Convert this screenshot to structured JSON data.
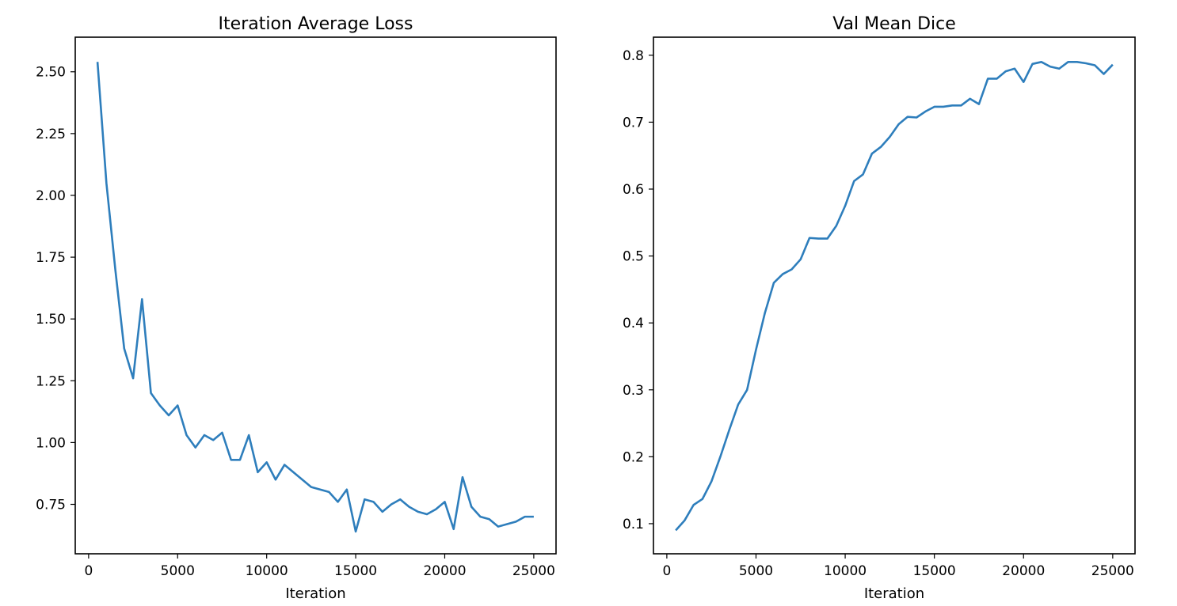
{
  "colors": {
    "line": "#2e7ebc",
    "axes": "#000000",
    "background": "#ffffff"
  },
  "chart_data": [
    {
      "type": "line",
      "title": "Iteration Average Loss",
      "xlabel": "Iteration",
      "ylabel": "",
      "xlim": [
        -750,
        26250
      ],
      "ylim": [
        0.55,
        2.64
      ],
      "xticks": [
        0,
        5000,
        10000,
        15000,
        20000,
        25000
      ],
      "yticks": [
        0.75,
        1.0,
        1.25,
        1.5,
        1.75,
        2.0,
        2.25,
        2.5
      ],
      "xtick_labels": [
        "0",
        "5000",
        "10000",
        "15000",
        "20000",
        "25000"
      ],
      "ytick_labels": [
        "0.75",
        "1.00",
        "1.25",
        "1.50",
        "1.75",
        "2.00",
        "2.25",
        "2.50"
      ],
      "grid": false,
      "series": [
        {
          "x": [
            500,
            1000,
            1500,
            2000,
            2500,
            3000,
            3500,
            4000,
            4500,
            5000,
            5500,
            6000,
            6500,
            7000,
            7500,
            8000,
            8500,
            9000,
            9500,
            10000,
            10500,
            11000,
            11500,
            12000,
            12500,
            13000,
            13500,
            14000,
            14500,
            15000,
            15500,
            16000,
            16500,
            17000,
            17500,
            18000,
            18500,
            19000,
            19500,
            20000,
            20500,
            21000,
            21500,
            22000,
            22500,
            23000,
            23500,
            24000,
            24500,
            25000
          ],
          "y": [
            2.54,
            2.05,
            1.7,
            1.38,
            1.26,
            1.58,
            1.2,
            1.15,
            1.11,
            1.15,
            1.03,
            0.98,
            1.03,
            1.01,
            1.04,
            0.93,
            0.93,
            1.03,
            0.88,
            0.92,
            0.85,
            0.91,
            0.88,
            0.85,
            0.82,
            0.81,
            0.8,
            0.76,
            0.81,
            0.64,
            0.77,
            0.76,
            0.72,
            0.75,
            0.77,
            0.74,
            0.72,
            0.71,
            0.73,
            0.76,
            0.65,
            0.86,
            0.74,
            0.7,
            0.69,
            0.66,
            0.67,
            0.68,
            0.7,
            0.7
          ]
        }
      ]
    },
    {
      "type": "line",
      "title": "Val Mean Dice",
      "xlabel": "Iteration",
      "ylabel": "",
      "xlim": [
        -750,
        26250
      ],
      "ylim": [
        0.055,
        0.827
      ],
      "xticks": [
        0,
        5000,
        10000,
        15000,
        20000,
        25000
      ],
      "yticks": [
        0.1,
        0.2,
        0.3,
        0.4,
        0.5,
        0.6,
        0.7,
        0.8
      ],
      "xtick_labels": [
        "0",
        "5000",
        "10000",
        "15000",
        "20000",
        "25000"
      ],
      "ytick_labels": [
        "0.1",
        "0.2",
        "0.3",
        "0.4",
        "0.5",
        "0.6",
        "0.7",
        "0.8"
      ],
      "grid": false,
      "series": [
        {
          "x": [
            500,
            1000,
            1500,
            2000,
            2500,
            3000,
            3500,
            4000,
            4500,
            5000,
            5500,
            6000,
            6500,
            7000,
            7500,
            8000,
            8500,
            9000,
            9500,
            10000,
            10500,
            11000,
            11500,
            12000,
            12500,
            13000,
            13500,
            14000,
            14500,
            15000,
            15500,
            16000,
            16500,
            17000,
            17500,
            18000,
            18500,
            19000,
            19500,
            20000,
            20500,
            21000,
            21500,
            22000,
            22500,
            23000,
            23500,
            24000,
            24500,
            25000
          ],
          "y": [
            0.09,
            0.105,
            0.128,
            0.137,
            0.163,
            0.2,
            0.24,
            0.278,
            0.3,
            0.36,
            0.415,
            0.46,
            0.473,
            0.48,
            0.495,
            0.527,
            0.526,
            0.526,
            0.545,
            0.575,
            0.612,
            0.622,
            0.653,
            0.663,
            0.678,
            0.697,
            0.708,
            0.707,
            0.716,
            0.723,
            0.723,
            0.725,
            0.725,
            0.735,
            0.727,
            0.765,
            0.765,
            0.776,
            0.78,
            0.76,
            0.787,
            0.79,
            0.783,
            0.78,
            0.79,
            0.79,
            0.788,
            0.785,
            0.772,
            0.786
          ]
        }
      ]
    }
  ]
}
